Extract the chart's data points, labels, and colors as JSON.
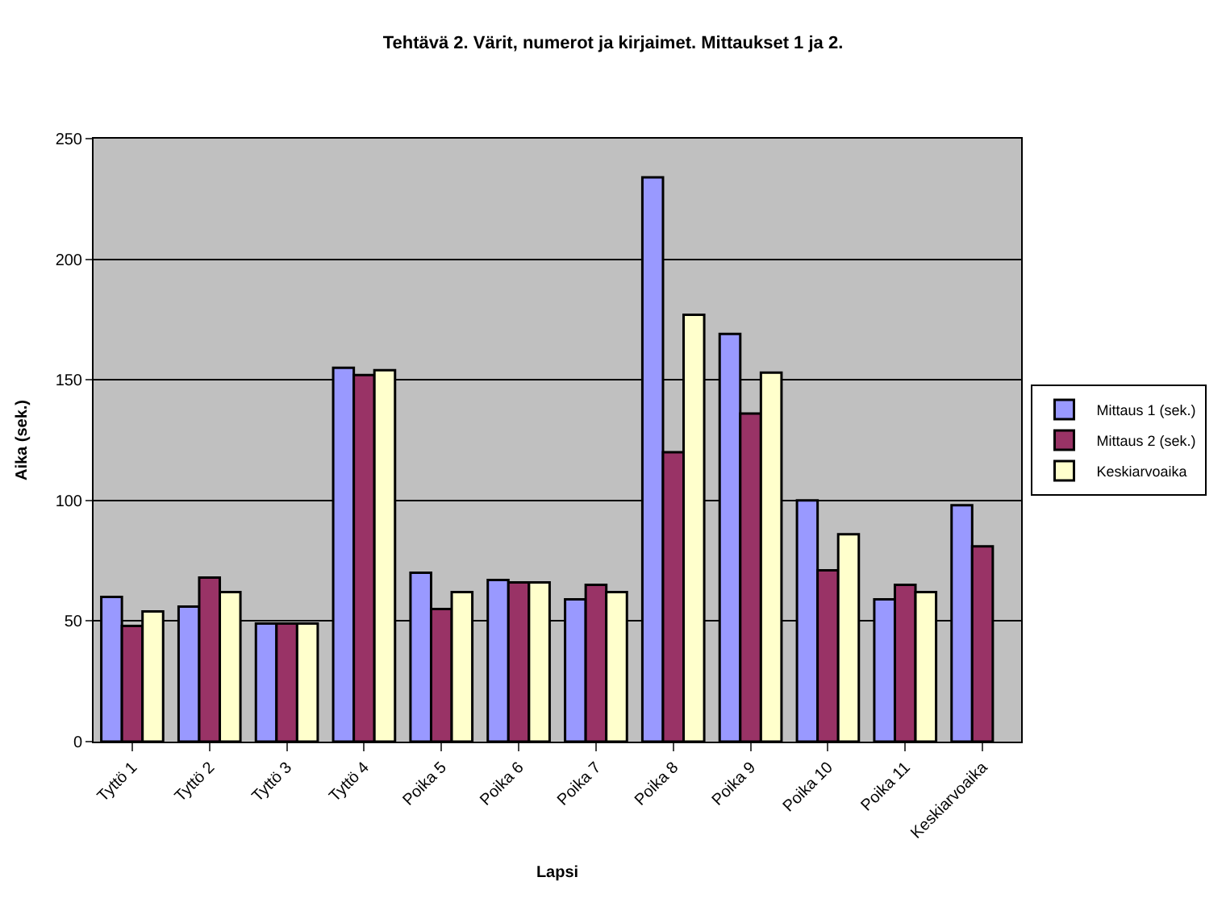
{
  "chart_data": {
    "type": "bar",
    "title": "Tehtävä 2. Värit, numerot ja kirjaimet. Mittaukset 1 ja 2.",
    "xlabel": "Lapsi",
    "ylabel": "Aika (sek.)",
    "categories": [
      "Tyttö 1",
      "Tyttö 2",
      "Tyttö 3",
      "Tyttö 4",
      "Poika 5",
      "Poika 6",
      "Poika 7",
      "Poika 8",
      "Poika 9",
      "Poika 10",
      "Poika 11",
      "Keskiarvoaika"
    ],
    "series": [
      {
        "name": "Mittaus 1 (sek.)",
        "color": "#9999ff",
        "values": [
          60,
          56,
          49,
          155,
          70,
          67,
          59,
          234,
          169,
          100,
          59,
          98
        ]
      },
      {
        "name": "Mittaus 2 (sek.)",
        "color": "#993366",
        "values": [
          48,
          68,
          49,
          152,
          55,
          66,
          65,
          120,
          136,
          71,
          65,
          81
        ]
      },
      {
        "name": "Keskiarvoaika",
        "color": "#ffffcc",
        "values": [
          54,
          62,
          49,
          154,
          62,
          66,
          62,
          177,
          153,
          86,
          62,
          null
        ]
      }
    ],
    "ylim": [
      0,
      250
    ],
    "yticks": [
      0,
      50,
      100,
      150,
      200,
      250
    ],
    "grid": "y",
    "legend": "right"
  }
}
